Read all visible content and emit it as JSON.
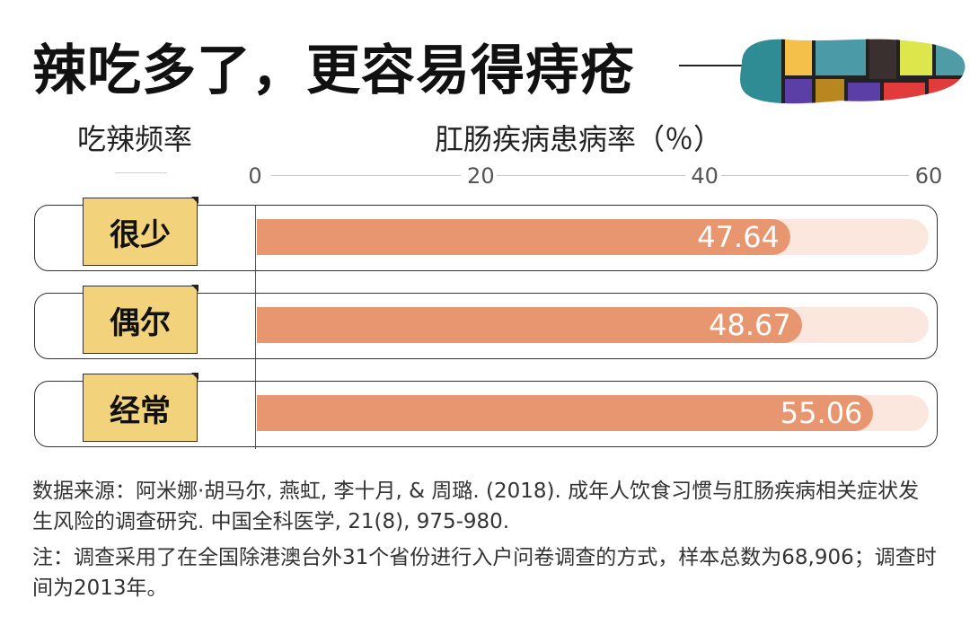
{
  "header": {
    "title": "辣吃多了，更容易得痔疮"
  },
  "decoration": {
    "colors": [
      "#2f8c94",
      "#f4c04a",
      "#4b9aa8",
      "#3a3030",
      "#dde64a",
      "#4f9ca7",
      "#5b3fa6",
      "#b9861f",
      "#e23b3b",
      "#222222"
    ]
  },
  "chart_data": {
    "type": "bar",
    "orientation": "horizontal",
    "title": "辣吃多了，更容易得痔疮",
    "category_header": "吃辣频率",
    "value_header": "肛肠疾病患病率（％）",
    "categories": [
      "很少",
      "偶尔",
      "经常"
    ],
    "values": [
      47.64,
      48.67,
      55.06
    ],
    "value_labels": [
      "47.64",
      "48.67",
      "55.06"
    ],
    "xlim": [
      0,
      60
    ],
    "ticks": [
      "0",
      "20",
      "40",
      "60"
    ],
    "colors": {
      "bar": "#e8966f",
      "track": "#fbe7dd",
      "label_box": "#f2d27a"
    }
  },
  "footer": {
    "source": "数据来源：阿米娜·胡马尔, 燕虹, 李十月, & 周璐. (2018). 成年人饮食习惯与肛肠疾病相关症状发生风险的调查研究. 中国全科医学, 21(8), 975-980.",
    "note": "注：调查采用了在全国除港澳台外31个省份进行入户问卷调查的方式，样本总数为68,906；调查时间为2013年。"
  }
}
